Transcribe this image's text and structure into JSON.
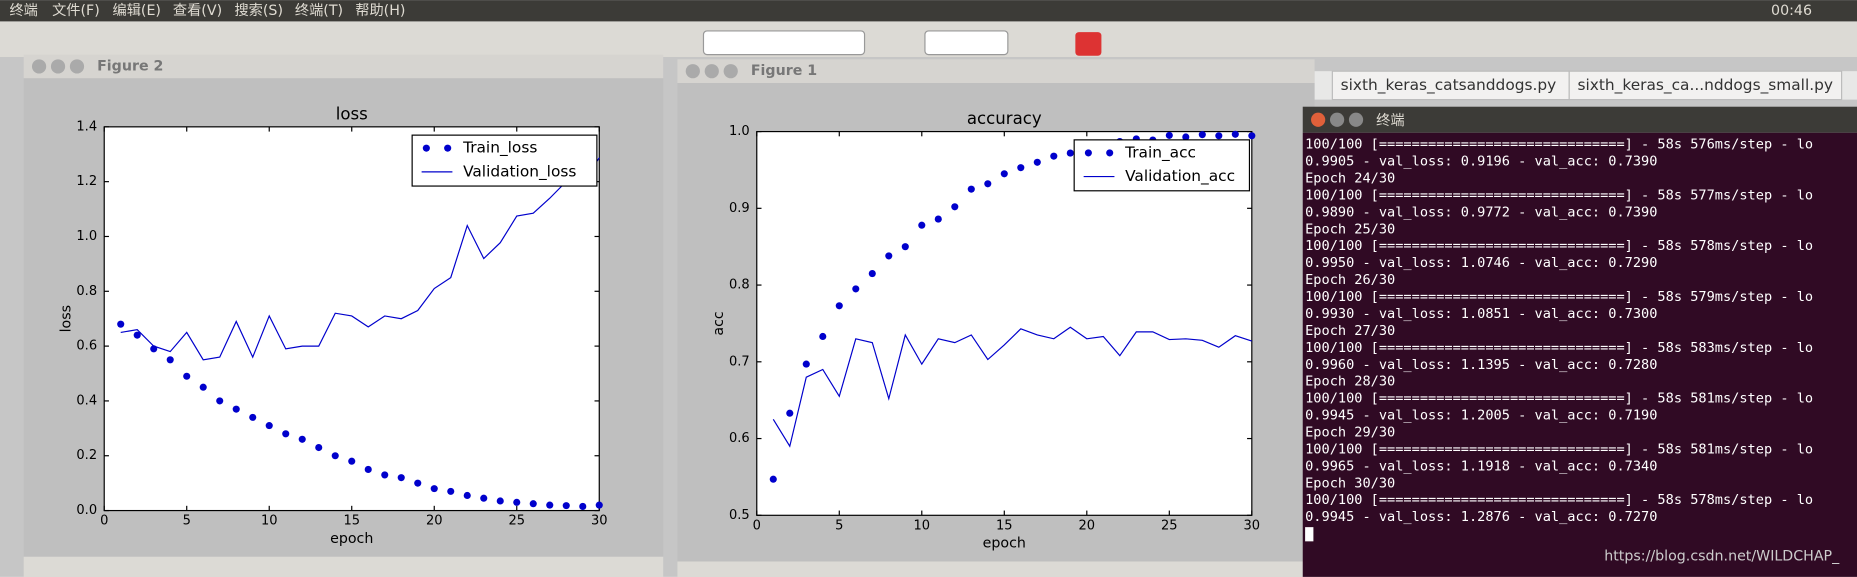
{
  "menu": [
    "终端",
    "文件(F)",
    "编辑(E)",
    "查看(V)",
    "搜索(S)",
    "终端(T)",
    "帮助(H)"
  ],
  "clock": "00:46",
  "windows": {
    "figure2": "Figure 2",
    "figure1": "Figure 1",
    "terminal": "终端"
  },
  "tabs": [
    "sixth_keras_catsanddogs.py",
    "sixth_keras_ca...nddogs_small.py"
  ],
  "terminal_lines": [
    "100/100 [==============================] - 58s 576ms/step - lo",
    "0.9905 - val_loss: 0.9196 - val_acc: 0.7390",
    "Epoch 24/30",
    "100/100 [==============================] - 58s 577ms/step - lo",
    "0.9890 - val_loss: 0.9772 - val_acc: 0.7390",
    "Epoch 25/30",
    "100/100 [==============================] - 58s 578ms/step - lo",
    "0.9950 - val_loss: 1.0746 - val_acc: 0.7290",
    "Epoch 26/30",
    "100/100 [==============================] - 58s 579ms/step - lo",
    "0.9930 - val_loss: 1.0851 - val_acc: 0.7300",
    "Epoch 27/30",
    "100/100 [==============================] - 58s 583ms/step - lo",
    "0.9960 - val_loss: 1.1395 - val_acc: 0.7280",
    "Epoch 28/30",
    "100/100 [==============================] - 58s 581ms/step - lo",
    "0.9945 - val_loss: 1.2005 - val_acc: 0.7190",
    "Epoch 29/30",
    "100/100 [==============================] - 58s 581ms/step - lo",
    "0.9965 - val_loss: 1.1918 - val_acc: 0.7340",
    "Epoch 30/30",
    "100/100 [==============================] - 58s 578ms/step - lo",
    "0.9945 - val_loss: 1.2876 - val_acc: 0.7270"
  ],
  "watermark": "https://blog.csdn.net/WILDCHAP_",
  "chart_data": [
    {
      "type": "line",
      "title": "loss",
      "x_label": "epoch",
      "y_label": "loss",
      "x": [
        1,
        2,
        3,
        4,
        5,
        6,
        7,
        8,
        9,
        10,
        11,
        12,
        13,
        14,
        15,
        16,
        17,
        18,
        19,
        20,
        21,
        22,
        23,
        24,
        25,
        26,
        27,
        28,
        29,
        30
      ],
      "series": [
        {
          "name": "Train_loss",
          "color": "#0000cc",
          "mode": "markers",
          "values": [
            0.68,
            0.64,
            0.59,
            0.55,
            0.49,
            0.45,
            0.4,
            0.37,
            0.34,
            0.31,
            0.28,
            0.26,
            0.23,
            0.2,
            0.18,
            0.15,
            0.13,
            0.12,
            0.1,
            0.08,
            0.07,
            0.055,
            0.045,
            0.035,
            0.03,
            0.025,
            0.02,
            0.018,
            0.015,
            0.02
          ]
        },
        {
          "name": "Validation_loss",
          "color": "#0000cc",
          "mode": "line",
          "values": [
            0.65,
            0.66,
            0.6,
            0.58,
            0.65,
            0.55,
            0.56,
            0.69,
            0.56,
            0.71,
            0.59,
            0.6,
            0.6,
            0.72,
            0.71,
            0.67,
            0.71,
            0.7,
            0.73,
            0.81,
            0.85,
            1.04,
            0.9196,
            0.9772,
            1.0746,
            1.0851,
            1.1395,
            1.2005,
            1.1918,
            1.2876
          ]
        }
      ],
      "xlim": [
        0,
        30
      ],
      "xticks": [
        0,
        5,
        10,
        15,
        20,
        25,
        30
      ],
      "ylim": [
        0,
        1.4
      ],
      "yticks": [
        {
          "value": 0,
          "label": "0.0"
        },
        0.2,
        0.4,
        0.6,
        0.8,
        {
          "value": 1,
          "label": "1.0"
        },
        1.2,
        1.4
      ],
      "legend": "upper right"
    },
    {
      "type": "line",
      "title": "accuracy",
      "x_label": "epoch",
      "y_label": "acc",
      "x": [
        1,
        2,
        3,
        4,
        5,
        6,
        7,
        8,
        9,
        10,
        11,
        12,
        13,
        14,
        15,
        16,
        17,
        18,
        19,
        20,
        21,
        22,
        23,
        24,
        25,
        26,
        27,
        28,
        29,
        30
      ],
      "series": [
        {
          "name": "Train_acc",
          "color": "#0000cc",
          "mode": "markers",
          "values": [
            0.547,
            0.633,
            0.697,
            0.733,
            0.773,
            0.795,
            0.815,
            0.838,
            0.85,
            0.878,
            0.886,
            0.902,
            0.925,
            0.932,
            0.945,
            0.953,
            0.96,
            0.968,
            0.972,
            0.978,
            0.982,
            0.987,
            0.9905,
            0.989,
            0.995,
            0.993,
            0.996,
            0.9945,
            0.9965,
            0.9945
          ]
        },
        {
          "name": "Validation_acc",
          "color": "#0000cc",
          "mode": "line",
          "values": [
            0.625,
            0.59,
            0.68,
            0.69,
            0.655,
            0.73,
            0.725,
            0.652,
            0.735,
            0.697,
            0.73,
            0.725,
            0.735,
            0.703,
            0.722,
            0.743,
            0.735,
            0.73,
            0.745,
            0.73,
            0.733,
            0.708,
            0.739,
            0.739,
            0.729,
            0.73,
            0.728,
            0.719,
            0.734,
            0.727
          ]
        }
      ],
      "xlim": [
        0,
        30
      ],
      "xticks": [
        0,
        5,
        10,
        15,
        20,
        25,
        30
      ],
      "ylim": [
        0.5,
        1
      ],
      "yticks": [
        0.5,
        0.6,
        0.7,
        0.8,
        0.9,
        {
          "value": 1,
          "label": "1.0"
        }
      ],
      "legend": "upper right"
    }
  ]
}
